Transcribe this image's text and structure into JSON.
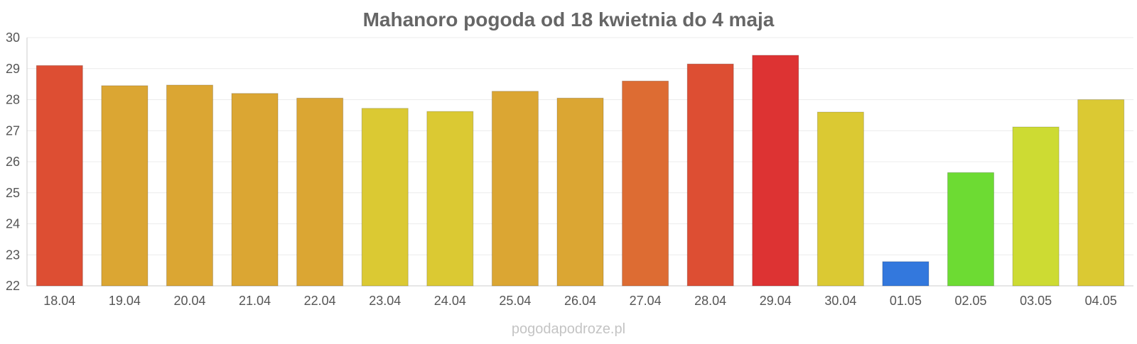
{
  "chart_data": {
    "type": "bar",
    "title": "Mahanoro pogoda od 18 kwietnia do 4 maja",
    "xlabel": "",
    "ylabel": "",
    "ylim": [
      22,
      30
    ],
    "yticks": [
      22,
      23,
      24,
      25,
      26,
      27,
      28,
      29,
      30
    ],
    "grid": true,
    "legend": "none",
    "categories": [
      "18.04",
      "19.04",
      "20.04",
      "21.04",
      "22.04",
      "23.04",
      "24.04",
      "25.04",
      "26.04",
      "27.04",
      "28.04",
      "29.04",
      "30.04",
      "01.05",
      "02.05",
      "03.05",
      "04.05"
    ],
    "values": [
      29.1,
      28.45,
      28.47,
      28.2,
      28.05,
      27.72,
      27.62,
      28.27,
      28.05,
      28.6,
      29.15,
      29.43,
      27.6,
      22.78,
      25.65,
      27.12,
      28.0
    ],
    "colors": [
      "#dd4e33",
      "#dba633",
      "#dba633",
      "#dba633",
      "#dba633",
      "#dbc933",
      "#dbc933",
      "#dba633",
      "#dba633",
      "#dd6c33",
      "#dd4e33",
      "#dd3333",
      "#dbc933",
      "#3378dd",
      "#6ddb33",
      "#cddb33",
      "#dbc933"
    ]
  },
  "watermark": "pogodapodroze.pl"
}
